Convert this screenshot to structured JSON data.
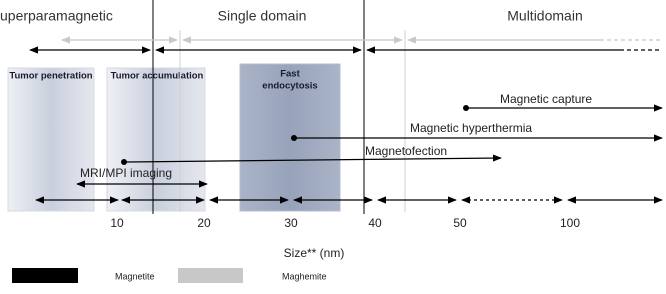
{
  "regimes": [
    "uperparamagnetic",
    "Single domain",
    "Multidomain"
  ],
  "boxes": [
    {
      "label": [
        "Tumor penetration"
      ]
    },
    {
      "label": [
        "Tumor accumulation"
      ]
    },
    {
      "label": [
        "Fast",
        "endocytosis"
      ]
    }
  ],
  "methods": [
    "Magnetic capture",
    "Magnetic hyperthermia",
    "Magnetofection",
    "MRI/MPI imaging"
  ],
  "axis": {
    "ticks": [
      "10",
      "20",
      "30",
      "40",
      "50",
      "100"
    ],
    "label": "Size** (nm)"
  },
  "legend": [
    "Magnetite",
    "Maghemite"
  ]
}
